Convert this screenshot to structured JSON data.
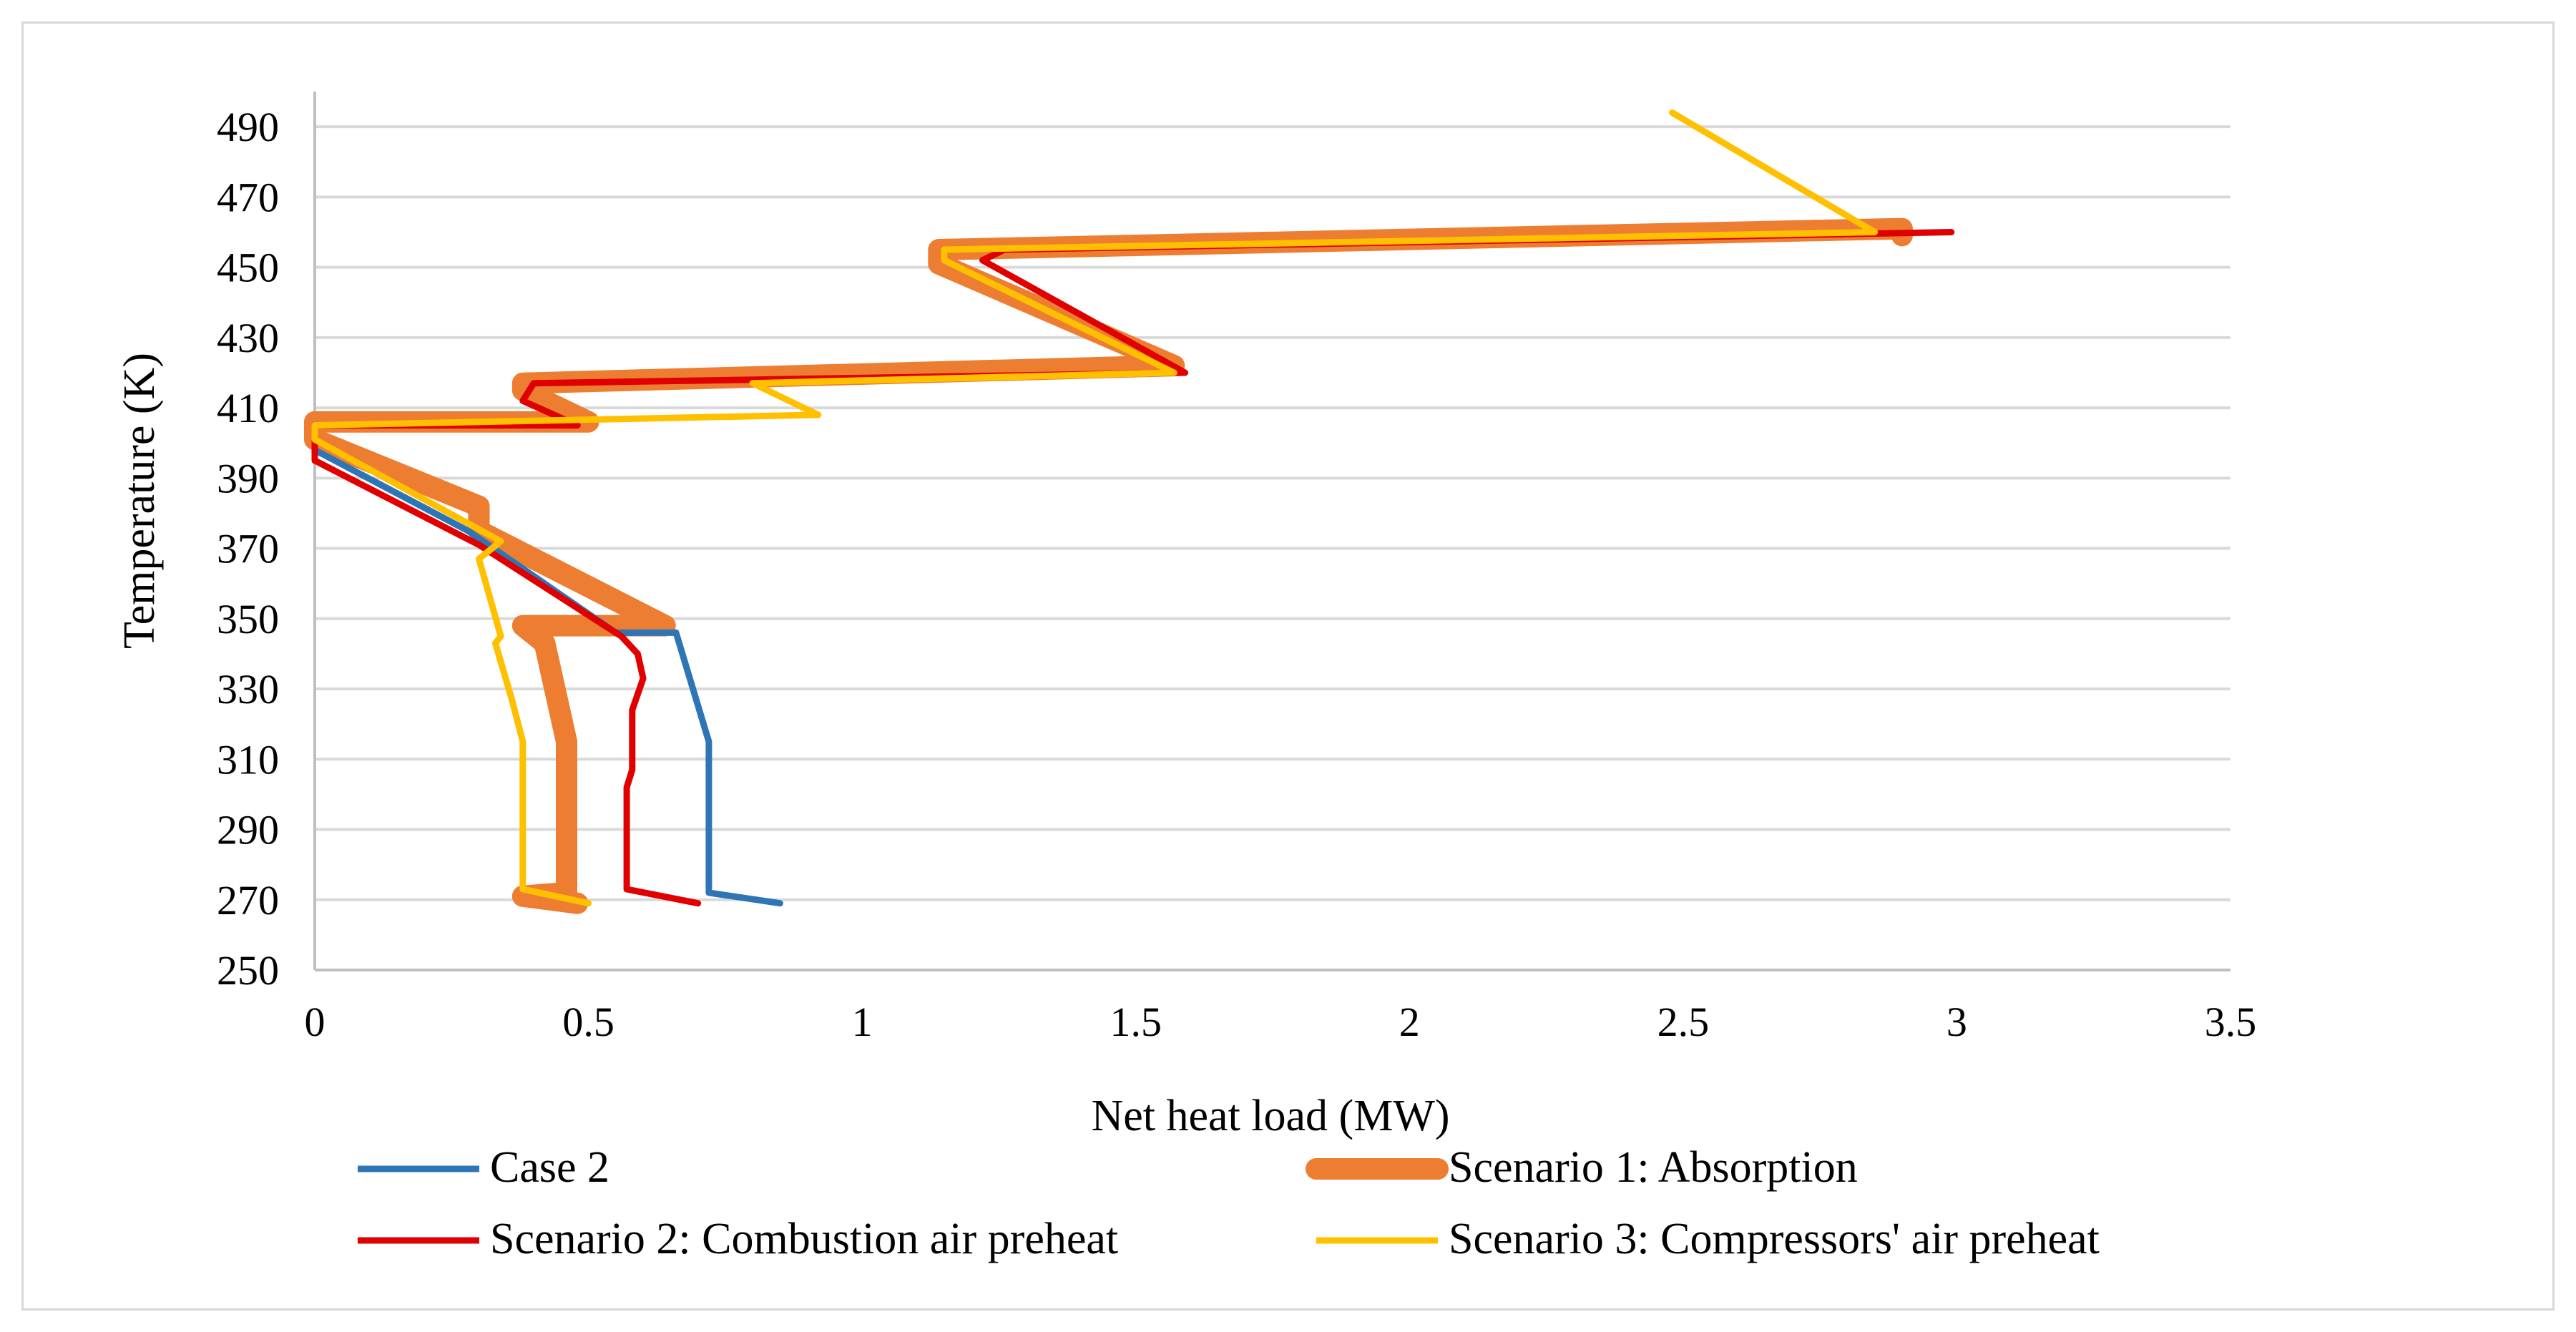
{
  "chart_data": {
    "type": "line",
    "title": "",
    "xlabel": "Net heat load (MW)",
    "ylabel": "Temperature (K)",
    "xlim": [
      0,
      3.5
    ],
    "ylim": [
      250,
      500
    ],
    "x_ticks": [
      0,
      0.5,
      1,
      1.5,
      2,
      2.5,
      3,
      3.5
    ],
    "x_tick_labels": [
      "0",
      "0.5",
      "1",
      "1.5",
      "2",
      "2.5",
      "3",
      "3.5"
    ],
    "y_ticks": [
      250,
      270,
      290,
      310,
      330,
      350,
      370,
      390,
      410,
      430,
      450,
      470,
      490
    ],
    "y_tick_labels": [
      "250",
      "270",
      "290",
      "310",
      "330",
      "350",
      "370",
      "390",
      "410",
      "430",
      "450",
      "470",
      "490"
    ],
    "grid": "horizontal",
    "legend_position": "bottom",
    "series": [
      {
        "name": "Scenario 1: Absorption",
        "color": "#ED7D31",
        "width": "thick",
        "x": [
          0.48,
          0.38,
          0.46,
          0.46,
          0.42,
          0.38,
          0.64,
          0.3,
          0.3,
          0.0,
          0.0,
          0.5,
          0.38,
          0.38,
          1.57,
          1.14,
          1.14,
          2.9,
          2.9
        ],
        "y": [
          269,
          271,
          272,
          315,
          343,
          348,
          348,
          375,
          382,
          401,
          406,
          406,
          415,
          417,
          422,
          451,
          455,
          461,
          459
        ]
      },
      {
        "name": "Case 2",
        "color": "#2E75B6",
        "width": "normal",
        "x": [
          0.85,
          0.72,
          0.72,
          0.66,
          0.55,
          0.28,
          0.0
        ],
        "y": [
          269,
          272,
          315,
          346,
          346,
          375,
          398
        ]
      },
      {
        "name": "Scenario 2: Combustion air preheat",
        "color": "#E00000",
        "width": "normal",
        "x": [
          0.7,
          0.57,
          0.57,
          0.58,
          0.58,
          0.6,
          0.59,
          0.56,
          0.3,
          0.0,
          0.0,
          0.48,
          0.38,
          0.4,
          1.59,
          1.22,
          1.26,
          2.99
        ],
        "y": [
          269,
          273,
          302,
          307,
          324,
          333,
          340,
          345,
          371,
          395,
          405,
          405,
          412,
          417,
          420,
          452,
          455,
          460
        ]
      },
      {
        "name": "Scenario 3: Compressors' air preheat",
        "color": "#FFC000",
        "width": "normal",
        "x": [
          0.5,
          0.38,
          0.38,
          0.36,
          0.33,
          0.34,
          0.3,
          0.34,
          0.0,
          0.0,
          0.92,
          0.8,
          0.8,
          1.57,
          1.15,
          1.15,
          2.85,
          2.48
        ],
        "y": [
          269,
          273,
          315,
          327,
          343,
          345,
          367,
          372,
          401,
          405,
          408,
          417,
          417,
          420,
          452,
          455,
          460,
          494
        ]
      }
    ],
    "legend": [
      {
        "label": "Case 2",
        "color": "#2E75B6",
        "width": "normal"
      },
      {
        "label": "Scenario 1: Absorption",
        "color": "#ED7D31",
        "width": "thick"
      },
      {
        "label": "Scenario 2: Combustion air preheat",
        "color": "#E00000",
        "width": "normal"
      },
      {
        "label": "Scenario 3: Compressors' air preheat",
        "color": "#FFC000",
        "width": "normal"
      }
    ]
  }
}
